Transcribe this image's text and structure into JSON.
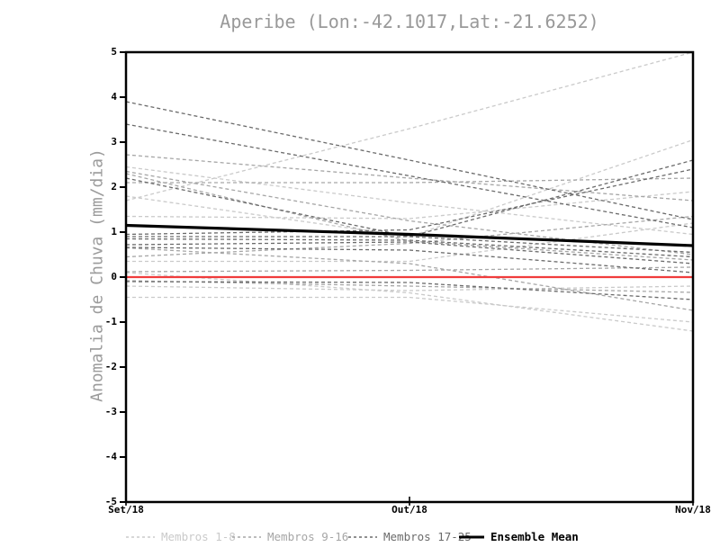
{
  "chart_data": {
    "type": "line",
    "title": "Aperibe (Lon:-42.1017,Lat:-21.6252)",
    "ylabel": "Anomalia de Chuva (mm/dia)",
    "x_labels": [
      "Set/18",
      "Out/18",
      "Nov/18"
    ],
    "ylim": [
      -5,
      5
    ],
    "yticks": [
      5,
      4,
      3,
      2,
      1,
      0,
      -1,
      -2,
      -3,
      -4,
      -5
    ],
    "grid": false,
    "frame_color": "#000000",
    "zero_line": {
      "value": 0,
      "color": "#f03c3c"
    },
    "groups": [
      {
        "name": "Membros 1-8",
        "color": "#cacaca",
        "style": "dashed",
        "members": [
          [
            1.7,
            3.3,
            5.0
          ],
          [
            2.45,
            1.65,
            0.95
          ],
          [
            1.35,
            1.3,
            1.9
          ],
          [
            1.8,
            0.9,
            3.05
          ],
          [
            0.35,
            0.35,
            1.2
          ],
          [
            0.1,
            -0.35,
            -1.2
          ],
          [
            -0.45,
            -0.45,
            -1.0
          ],
          [
            -0.2,
            -0.3,
            -0.2
          ]
        ]
      },
      {
        "name": "Membros 9-16",
        "color": "#a6a6a6",
        "style": "dashed",
        "members": [
          [
            2.1,
            2.1,
            2.2
          ],
          [
            2.72,
            2.2,
            1.7
          ],
          [
            0.45,
            0.75,
            1.35
          ],
          [
            2.35,
            1.25,
            0.5
          ],
          [
            2.3,
            0.8,
            0.38
          ],
          [
            0.12,
            0.15,
            0.22
          ],
          [
            -0.08,
            -0.2,
            -0.34
          ],
          [
            0.65,
            0.3,
            -0.74
          ]
        ]
      },
      {
        "name": "Membros 17-25",
        "color": "#6b6b6b",
        "style": "dashed",
        "members": [
          [
            3.9,
            2.6,
            1.28
          ],
          [
            3.4,
            2.25,
            1.1
          ],
          [
            2.2,
            0.9,
            2.6
          ],
          [
            0.95,
            1.05,
            2.4
          ],
          [
            0.9,
            0.9,
            0.55
          ],
          [
            0.85,
            0.82,
            0.45
          ],
          [
            0.72,
            0.78,
            0.3
          ],
          [
            0.66,
            0.6,
            0.1
          ],
          [
            -0.1,
            -0.12,
            -0.5
          ]
        ]
      }
    ],
    "ensemble_mean": {
      "name": "Ensemble Mean",
      "color": "#000000",
      "style": "solid",
      "values": [
        1.15,
        0.95,
        0.7
      ]
    },
    "legend": [
      {
        "label": "Membros 1-8",
        "color": "#cacaca",
        "style": "dashed"
      },
      {
        "label": "Membros 9-16",
        "color": "#a6a6a6",
        "style": "dashed"
      },
      {
        "label": "Membros 17-25",
        "color": "#6b6b6b",
        "style": "dashed"
      },
      {
        "label": "Ensemble Mean",
        "color": "#000000",
        "style": "solid"
      }
    ],
    "legend_position": "bottom"
  }
}
